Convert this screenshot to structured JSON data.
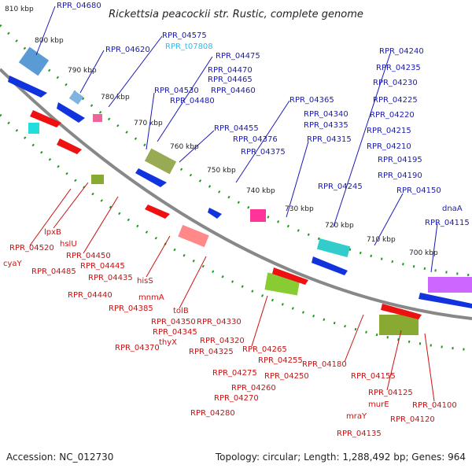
{
  "title": "Rickettsia peacockii str. Rustic, complete genome",
  "footer": {
    "accession": "Accession: NC_012730",
    "topology": "Topology: circular; Length: 1,288,492 bp; Genes: 964"
  },
  "colors": {
    "forward_label": "#1a1ab8",
    "reverse_label": "#cc1111",
    "rna_label": "#33bbee",
    "arc": "#777777",
    "tick": "#229922",
    "arrow_forward": "#1133dd",
    "arrow_reverse": "#ee1111"
  },
  "kbp_ticks": [
    "810 kbp",
    "800 kbp",
    "790 kbp",
    "780 kbp",
    "770 kbp",
    "760 kbp",
    "750 kbp",
    "740 kbp",
    "730 kbp",
    "720 kbp",
    "710 kbp",
    "700 kbp"
  ],
  "forward_labels": [
    "RPR_04680",
    "RPR_04620",
    "RPR_04575",
    "RPR_t07808",
    "RPR_04475",
    "RPR_04470",
    "RPR_04465",
    "RPR_04530",
    "RPR_04480",
    "RPR_04460",
    "RPR_04455",
    "RPR_04365",
    "RPR_04340",
    "RPR_04335",
    "RPR_04376",
    "RPR_04375",
    "RPR_04315",
    "RPR_04240",
    "RPR_04235",
    "RPR_04230",
    "RPR_04225",
    "RPR_04220",
    "RPR_04215",
    "RPR_04210",
    "RPR_04195",
    "RPR_04190",
    "RPR_04245",
    "RPR_04150",
    "dnaA",
    "RPR_04115"
  ],
  "reverse_labels": [
    "lpxB",
    "hslU",
    "RPR_04520",
    "cyaY",
    "RPR_04450",
    "RPR_04485",
    "RPR_04445",
    "RPR_04435",
    "hisS",
    "RPR_04440",
    "mnmA",
    "RPR_04385",
    "tolB",
    "RPR_04350",
    "RPR_04330",
    "RPR_04345",
    "thyX",
    "RPR_04370",
    "RPR_04320",
    "RPR_04325",
    "RPR_04265",
    "RPR_04255",
    "RPR_04275",
    "RPR_04260",
    "RPR_04250",
    "RPR_04270",
    "RPR_04280",
    "RPR_04180",
    "RPR_04155",
    "murE",
    "RPR_04125",
    "RPR_04100",
    "mraY",
    "RPR_04120",
    "RPR_04135"
  ]
}
